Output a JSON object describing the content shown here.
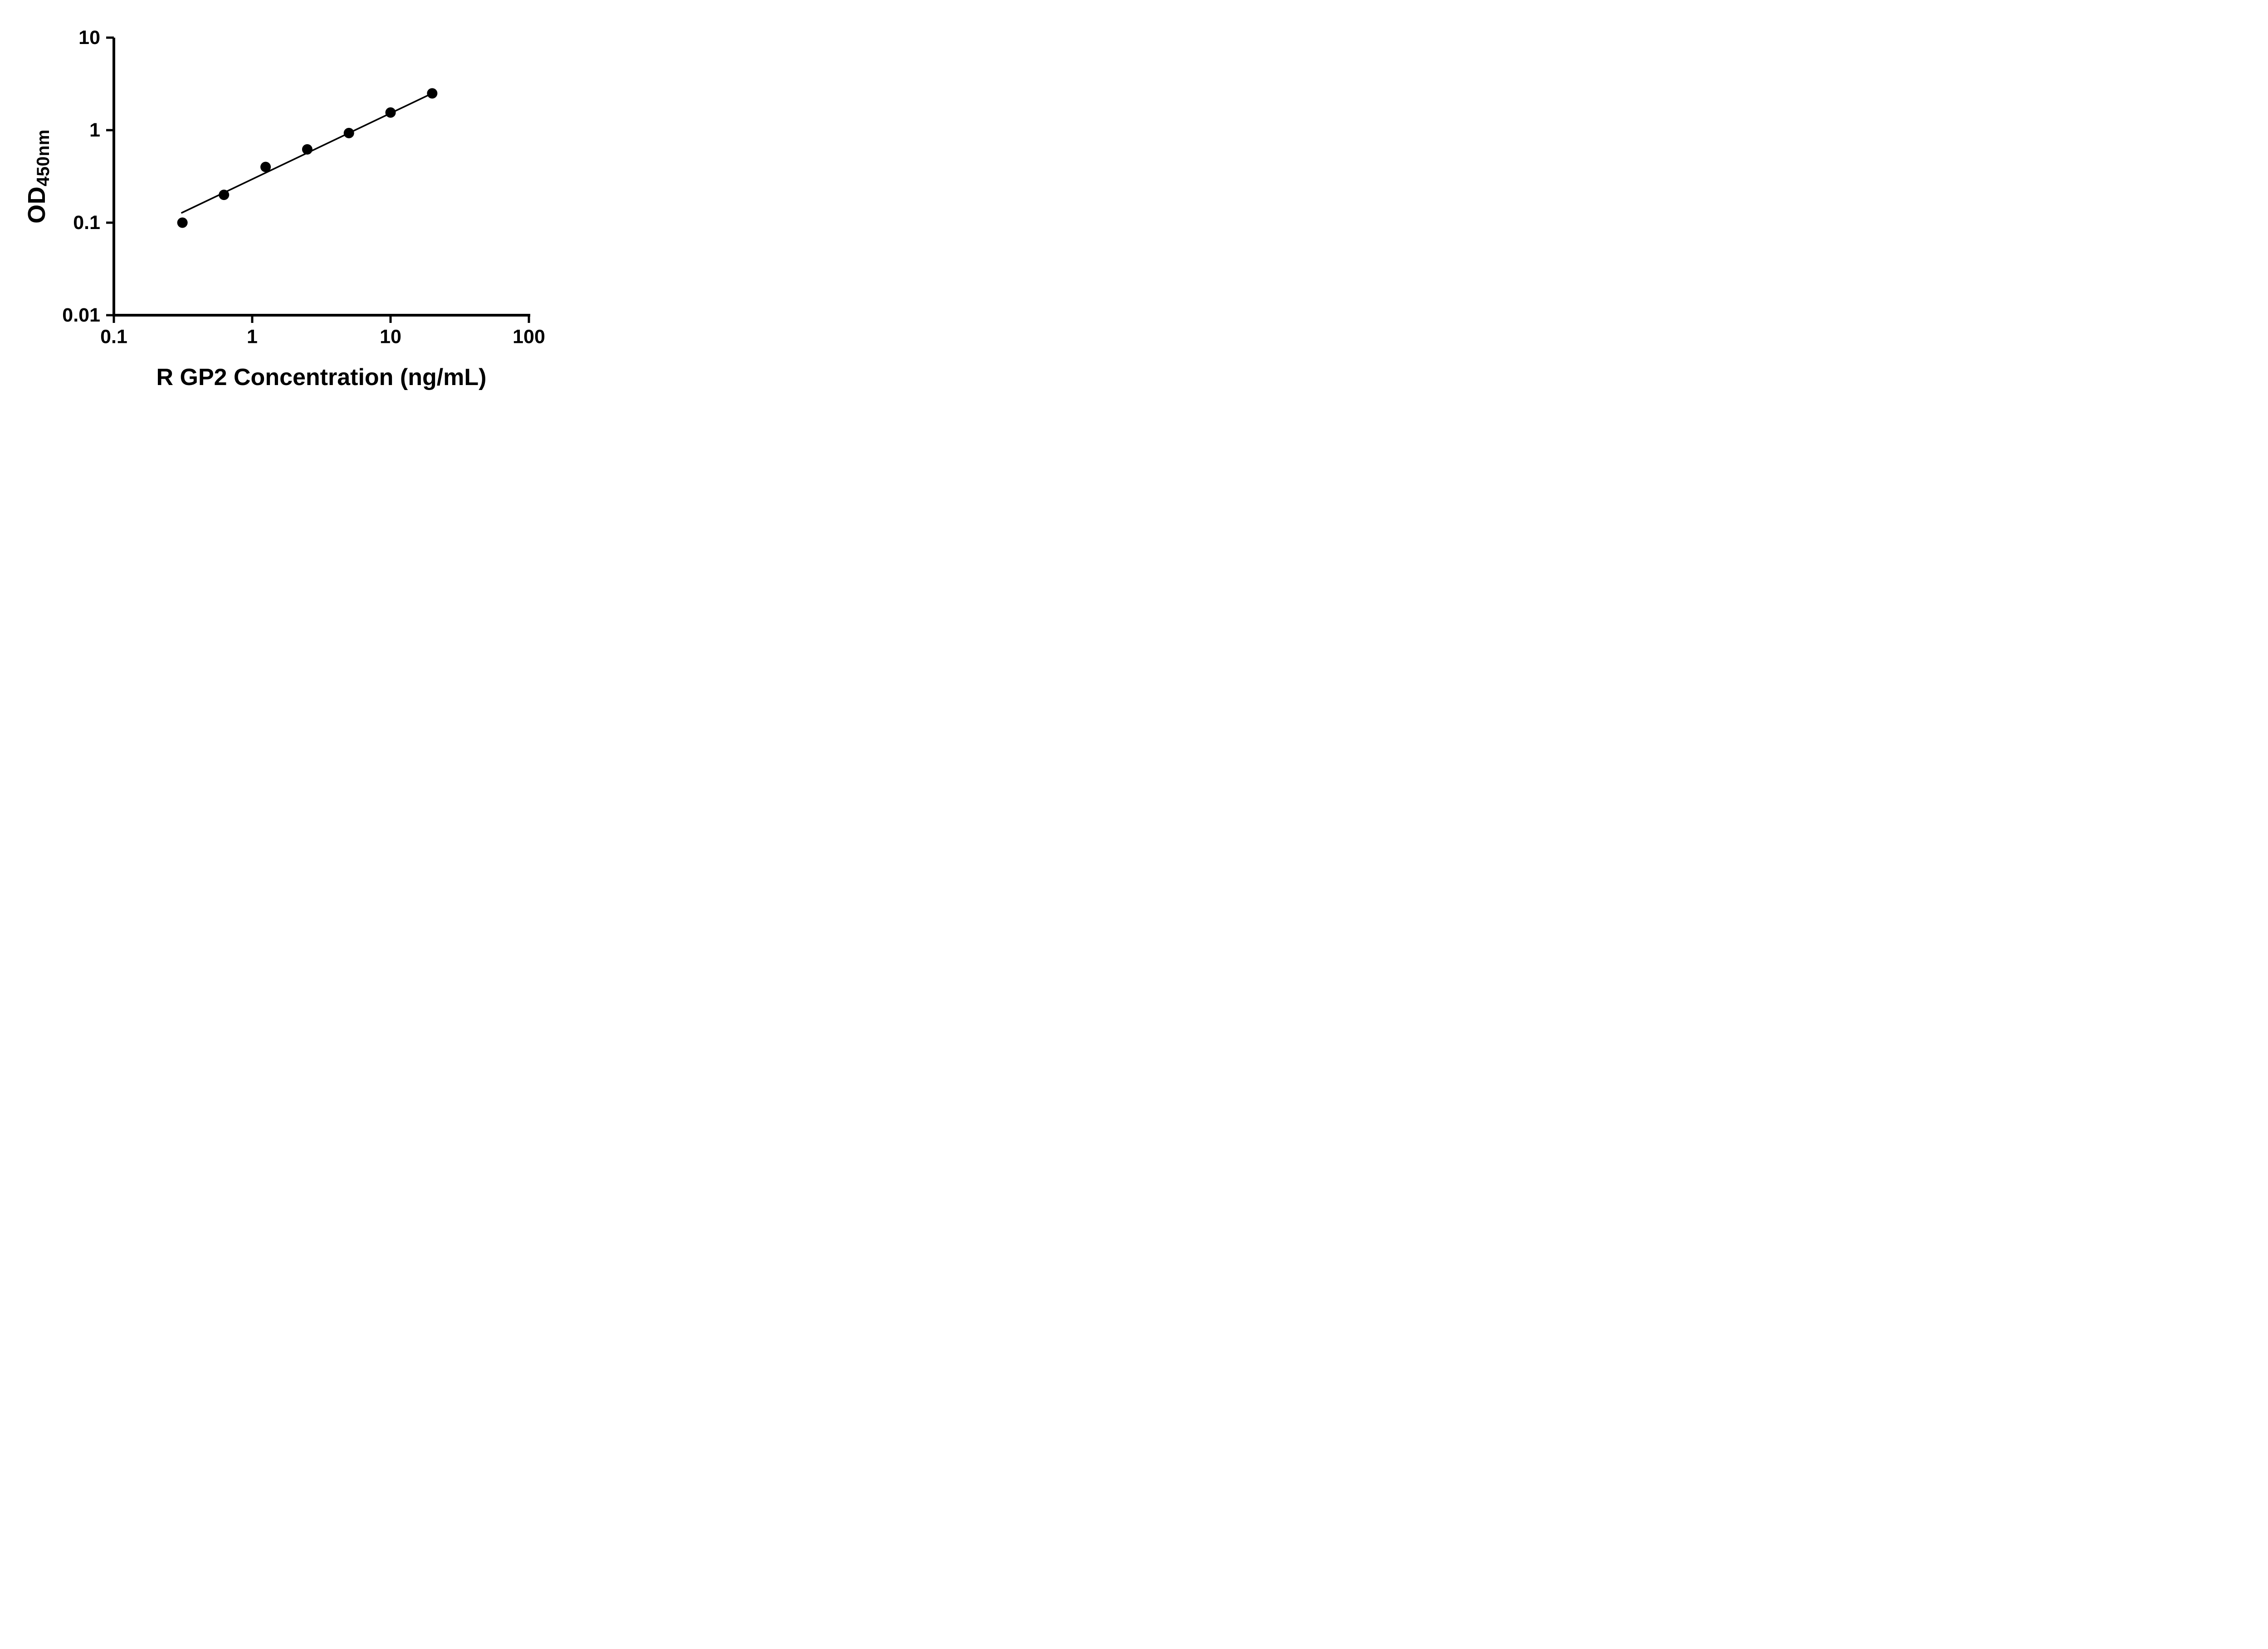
{
  "figure": {
    "background": "#ffffff"
  },
  "chart_data": {
    "type": "scatter",
    "title": "",
    "xlabel": "R GP2 Concentration (ng/mL)",
    "ylabel_main": "OD",
    "ylabel_sub": "450nm",
    "x_scale": "log",
    "y_scale": "log",
    "xlim": [
      0.1,
      100
    ],
    "ylim": [
      0.01,
      10
    ],
    "grid": false,
    "legend": false,
    "x_ticks": [
      {
        "v": 0.1,
        "label": "0.1"
      },
      {
        "v": 1,
        "label": "1"
      },
      {
        "v": 10,
        "label": "10"
      },
      {
        "v": 100,
        "label": "100"
      }
    ],
    "y_ticks": [
      {
        "v": 10,
        "label": "10"
      },
      {
        "v": 1,
        "label": "1"
      },
      {
        "v": 0.1,
        "label": "0.1"
      },
      {
        "v": 0.01,
        "label": "0.01"
      }
    ],
    "series": [
      {
        "x": [
          0.313,
          0.625,
          1.25,
          2.5,
          5,
          10,
          20
        ],
        "y": [
          0.1,
          0.2,
          0.4,
          0.62,
          0.93,
          1.55,
          2.5
        ]
      }
    ],
    "trendline": {
      "x1": 0.31,
      "y1": 0.128,
      "x2": 20,
      "y2": 2.5
    },
    "colors": {
      "point": "#000000",
      "line": "#000000",
      "axis": "#000000",
      "text": "#000000"
    }
  }
}
